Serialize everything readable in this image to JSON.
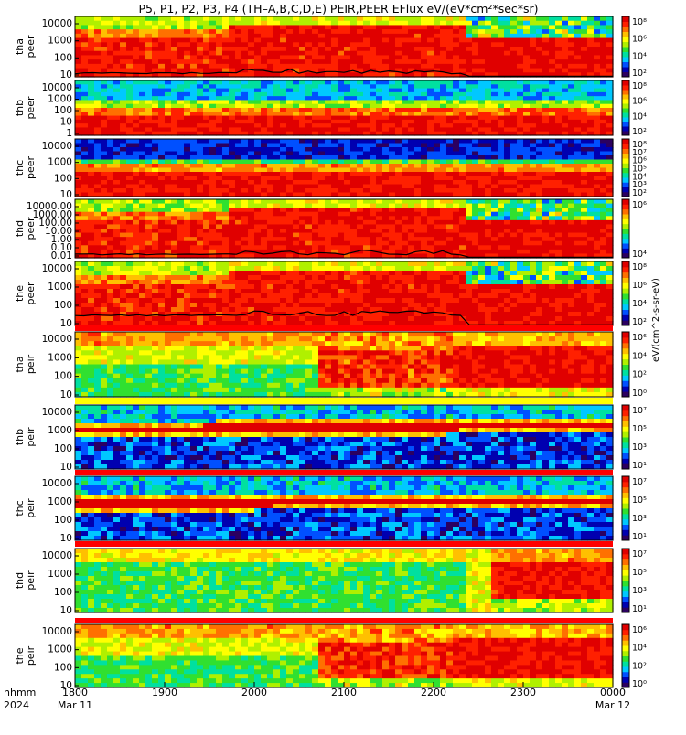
{
  "title": "P5, P1, P2, P3, P4 (TH–A,B,C,D,E) PEIR,PEER EFlux eV/(eV*cm²*sec*sr)",
  "colors": {
    "spectrum": [
      "#2b0060",
      "#0000b0",
      "#0050ff",
      "#00c8ff",
      "#00e0a0",
      "#30e030",
      "#b0f000",
      "#ffff00",
      "#ffc000",
      "#ff7000",
      "#ff2000",
      "#e00000"
    ],
    "band_red": "#ff0000",
    "band_yellow": "#ffff00",
    "trace": "#000000"
  },
  "axis": {
    "row1": "hhmm",
    "row2": "2024",
    "ticks": [
      "1800",
      "1900",
      "2000",
      "2100",
      "2200",
      "2300",
      "0000"
    ],
    "dates": [
      {
        "at": "1800",
        "label": "Mar 11"
      },
      {
        "at": "0000",
        "label": "Mar 12"
      }
    ]
  },
  "colorbar_unit": "eV/(cm^2-s-sr-eV)",
  "chart_data": [
    {
      "type": "heatmap",
      "ylabel": [
        "tha",
        "peer"
      ],
      "y_ticks": [
        "10000",
        "1000",
        "100",
        "10"
      ],
      "cbar_ticks": [
        "10⁸",
        "10⁶",
        "10⁴",
        "10²"
      ],
      "scale": "log",
      "x_range": [
        "1800",
        "0000"
      ],
      "trace": true
    },
    {
      "type": "heatmap",
      "ylabel": [
        "thb",
        "peer"
      ],
      "y_ticks": [
        "10000",
        "1000",
        "100",
        "10",
        "1"
      ],
      "cbar_ticks": [
        "10⁸",
        "10⁶",
        "10⁴",
        "10²"
      ],
      "scale": "log",
      "x_range": [
        "1800",
        "0000"
      ],
      "trace": false
    },
    {
      "type": "heatmap",
      "ylabel": [
        "thc",
        "peer"
      ],
      "y_ticks": [
        "10000",
        "1000",
        "100",
        "10"
      ],
      "cbar_ticks": [
        "10⁸",
        "10⁷",
        "10⁶",
        "10⁵",
        "10⁴",
        "10³",
        "10²"
      ],
      "scale": "log",
      "x_range": [
        "1800",
        "0000"
      ],
      "trace": false
    },
    {
      "type": "heatmap",
      "ylabel": [
        "thd",
        "peer"
      ],
      "y_ticks": [
        "10000.00",
        "1000.00",
        "100.00",
        "10.00",
        "1.00",
        "0.10",
        "0.01"
      ],
      "cbar_ticks": [
        "10⁶",
        "10⁴"
      ],
      "scale": "log",
      "x_range": [
        "1800",
        "0000"
      ],
      "trace": true
    },
    {
      "type": "heatmap",
      "ylabel": [
        "the",
        "peer"
      ],
      "y_ticks": [
        "10000",
        "1000",
        "100",
        "10"
      ],
      "cbar_ticks": [
        "10⁸",
        "10⁶",
        "10⁴",
        "10²"
      ],
      "scale": "log",
      "x_range": [
        "1800",
        "0000"
      ],
      "trace": true
    },
    {
      "type": "heatmap",
      "ylabel": [
        "tha",
        "peir"
      ],
      "y_ticks": [
        "10000",
        "1000",
        "100",
        "10"
      ],
      "cbar_ticks": [
        "10⁶",
        "10⁴",
        "10²",
        "10⁰"
      ],
      "scale": "log",
      "x_range": [
        "1800",
        "0000"
      ],
      "band": "red"
    },
    {
      "type": "heatmap",
      "ylabel": [
        "thb",
        "peir"
      ],
      "y_ticks": [
        "10000",
        "1000",
        "100",
        "10"
      ],
      "cbar_ticks": [
        "10⁷",
        "10⁵",
        "10³",
        "10¹"
      ],
      "scale": "log",
      "x_range": [
        "1800",
        "0000"
      ],
      "band": "yellow"
    },
    {
      "type": "heatmap",
      "ylabel": [
        "thc",
        "peir"
      ],
      "y_ticks": [
        "10000",
        "1000",
        "100",
        "10"
      ],
      "cbar_ticks": [
        "10⁷",
        "10⁵",
        "10³",
        "10¹"
      ],
      "scale": "log",
      "x_range": [
        "1800",
        "0000"
      ],
      "band": "red"
    },
    {
      "type": "heatmap",
      "ylabel": [
        "thd",
        "peir"
      ],
      "y_ticks": [
        "10000",
        "1000",
        "100",
        "10"
      ],
      "cbar_ticks": [
        "10⁷",
        "10⁵",
        "10³",
        "10¹"
      ],
      "scale": "log",
      "x_range": [
        "1800",
        "0000"
      ],
      "band": "red"
    },
    {
      "type": "heatmap",
      "ylabel": [
        "the",
        "peir"
      ],
      "y_ticks": [
        "10000",
        "1000",
        "100",
        "10"
      ],
      "cbar_ticks": [
        "10⁶",
        "10⁴",
        "10²",
        "10⁰"
      ],
      "scale": "log",
      "x_range": [
        "1800",
        "0000"
      ],
      "band": "red"
    }
  ]
}
